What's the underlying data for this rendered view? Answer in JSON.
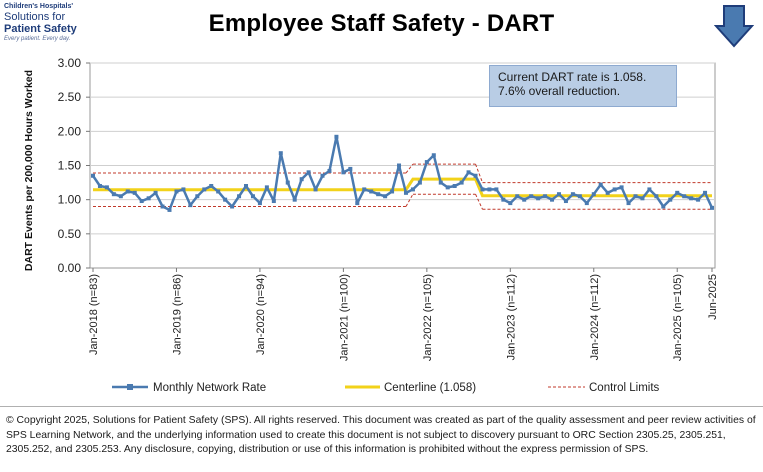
{
  "logo": {
    "line1": "Children's Hospitals'",
    "line2": "Solutions for",
    "line3": "Patient Safety",
    "line4": "Every patient. Every day."
  },
  "icons": {
    "trend": "down-arrow-icon"
  },
  "annotation": {
    "line1": "Current  DART rate is 1.058.",
    "line2": "7.6% overall  reduction."
  },
  "footer": {
    "text": "© Copyright 2025, Solutions for Patient Safety (SPS).  All rights reserved.  This document was created as part of the quality assessment and peer review activities of SPS Learning Network, and the underlying information used to create this document is not subject to discovery pursuant to ORC Section 2305.25, 2305.251, 2305.252, and 2305.253. Any disclosure, copying, distribution or use of this information is prohibited without the express permission of SPS."
  },
  "colors": {
    "series": "#4a7ab0",
    "centerline": "#f2d21a",
    "control": "#c0392b",
    "grid": "#cfcfcf"
  },
  "chart_data": {
    "type": "line",
    "title": "Employee Staff Safety - DART",
    "ylabel": "DART Events per 200,000 Hours Worked",
    "xlabel": "",
    "ylim": [
      0,
      3
    ],
    "yticks": [
      "0.00",
      "0.50",
      "1.00",
      "1.50",
      "2.00",
      "2.50",
      "3.00"
    ],
    "ytick_values": [
      0,
      0.5,
      1,
      1.5,
      2,
      2.5,
      3
    ],
    "grid": true,
    "n_points": 90,
    "xtick_labels": [
      {
        "index": 0,
        "label": "Jan-2018 (n=83)"
      },
      {
        "index": 12,
        "label": "Jan-2019 (n=86)"
      },
      {
        "index": 24,
        "label": "Jan-2020 (n=94)"
      },
      {
        "index": 36,
        "label": "Jan-2021 (n=100)"
      },
      {
        "index": 48,
        "label": "Jan-2022 (n=105)"
      },
      {
        "index": 60,
        "label": "Jan-2023 (n=112)"
      },
      {
        "index": 72,
        "label": "Jan-2024 (n=112)"
      },
      {
        "index": 84,
        "label": "Jan-2025 (n=105)"
      },
      {
        "index": 89,
        "label": "Jun-2025"
      }
    ],
    "series": [
      {
        "name": "Monthly Network Rate",
        "values": [
          1.35,
          1.2,
          1.18,
          1.08,
          1.05,
          1.12,
          1.1,
          0.98,
          1.02,
          1.1,
          0.9,
          0.85,
          1.12,
          1.15,
          0.92,
          1.05,
          1.15,
          1.2,
          1.12,
          1.0,
          0.9,
          1.05,
          1.2,
          1.05,
          0.95,
          1.18,
          0.98,
          1.68,
          1.25,
          1.0,
          1.3,
          1.4,
          1.15,
          1.35,
          1.42,
          1.92,
          1.4,
          1.45,
          0.95,
          1.15,
          1.12,
          1.08,
          1.05,
          1.12,
          1.5,
          1.1,
          1.15,
          1.25,
          1.55,
          1.65,
          1.25,
          1.18,
          1.2,
          1.25,
          1.4,
          1.35,
          1.15,
          1.15,
          1.15,
          1.0,
          0.95,
          1.05,
          1.0,
          1.05,
          1.02,
          1.05,
          1.0,
          1.08,
          0.98,
          1.08,
          1.05,
          0.95,
          1.08,
          1.22,
          1.1,
          1.15,
          1.18,
          0.95,
          1.05,
          1.02,
          1.15,
          1.05,
          0.9,
          1.0,
          1.1,
          1.05,
          1.02,
          1.0,
          1.1,
          0.88
        ]
      },
      {
        "name": "Centerline (1.058)",
        "segments": [
          {
            "start": 0,
            "end": 45,
            "value": 1.145
          },
          {
            "start": 46,
            "end": 55,
            "value": 1.3
          },
          {
            "start": 56,
            "end": 89,
            "value": 1.058
          }
        ]
      },
      {
        "name": "Control Limits",
        "segments": [
          {
            "start": 0,
            "end": 45,
            "upper": 1.39,
            "lower": 0.9
          },
          {
            "start": 46,
            "end": 55,
            "upper": 1.52,
            "lower": 1.08
          },
          {
            "start": 56,
            "end": 89,
            "upper": 1.25,
            "lower": 0.86
          }
        ]
      }
    ],
    "legend": {
      "position": "bottom",
      "items": [
        "Monthly Network Rate",
        "Centerline (1.058)",
        "Control Limits"
      ]
    }
  }
}
